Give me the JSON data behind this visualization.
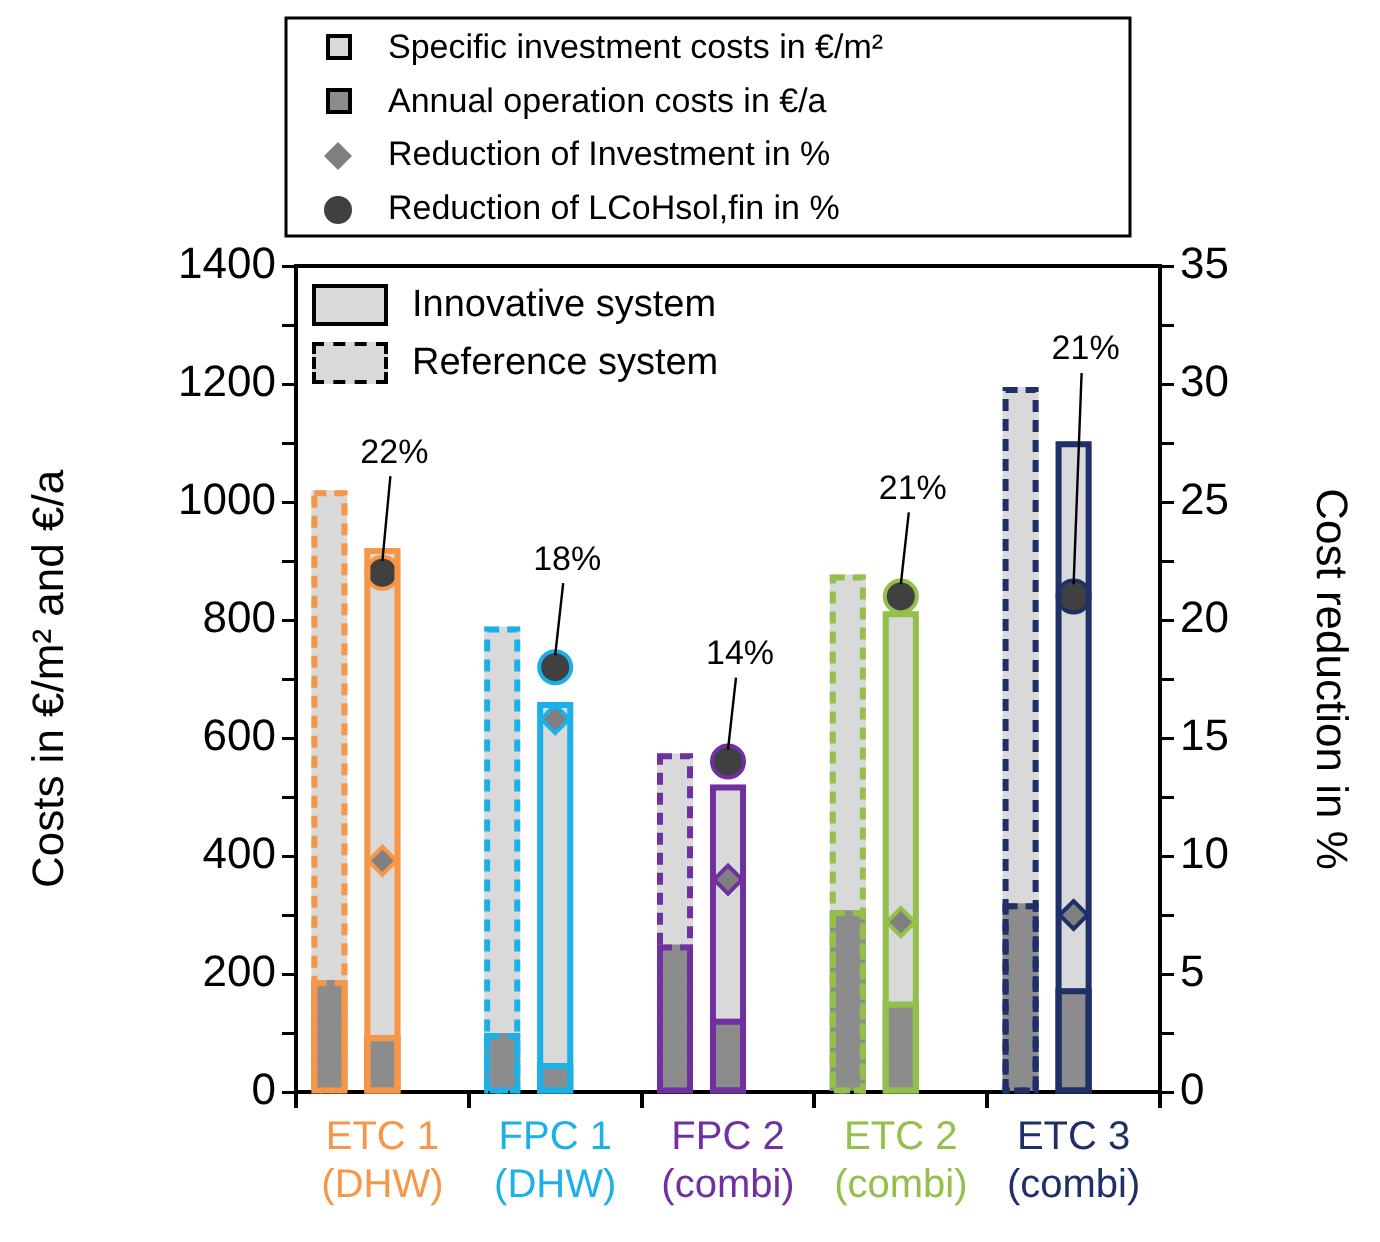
{
  "chart_data": {
    "type": "bar",
    "categories": [
      "ETC 1 (DHW)",
      "FPC 1 (DHW)",
      "FPC 2 (combi)",
      "ETC 2 (combi)",
      "ETC 3 (combi)"
    ],
    "ylabel": "Costs in €/m² and €/a",
    "y2label": "Cost reduction in %",
    "ylim": [
      0,
      1400
    ],
    "yticks": [
      0,
      {
        "value": 100,
        "label": null
      },
      200,
      {
        "value": 300,
        "label": null
      },
      400,
      {
        "value": 500,
        "label": null
      },
      600,
      {
        "value": 700,
        "label": null
      },
      800,
      {
        "value": 900,
        "label": null
      },
      1000,
      {
        "value": 1100,
        "label": null
      },
      1200,
      {
        "value": 1300,
        "label": null
      },
      1400
    ],
    "y2lim": [
      0,
      35
    ],
    "y2ticks": [
      0,
      {
        "value": 2.5,
        "label": null
      },
      5,
      {
        "value": 7.5,
        "label": null
      },
      10,
      {
        "value": 12.5,
        "label": null
      },
      15,
      {
        "value": 17.5,
        "label": null
      },
      20,
      {
        "value": 22.5,
        "label": null
      },
      25,
      {
        "value": 27.5,
        "label": null
      },
      30,
      {
        "value": 32.5,
        "label": null
      },
      35
    ],
    "grid": false,
    "legend": "top",
    "annotations": [
      "Specific investment costs in €/m²",
      "Annual operation costs in €/a",
      "Innovative system",
      "Reference system"
    ],
    "series": [
      {
        "type": "bar",
        "color": "#d9d9d9",
        "colors": [
          "#f79646",
          "#1cb0e8",
          "#7030a0",
          "#92c04a",
          "#1f3068"
        ],
        "line_style": "dashed",
        "values": [
          1020,
          789,
          574,
          877,
          1195
        ]
      },
      {
        "type": "bar",
        "color": "#8c8c8c",
        "colors": [
          "#f79646",
          "#1cb0e8",
          "#7030a0",
          "#92c04a",
          "#1f3068"
        ],
        "line_style": "dashed",
        "values": [
          190,
          100,
          250,
          308,
          320
        ]
      },
      {
        "type": "bar",
        "color": "#d9d9d9",
        "colors": [
          "#f79646",
          "#1cb0e8",
          "#7030a0",
          "#92c04a",
          "#1f3068"
        ],
        "line_style": "solid",
        "values": [
          922,
          661,
          521,
          815,
          1103
        ]
      },
      {
        "type": "bar",
        "color": "#8c8c8c",
        "colors": [
          "#f79646",
          "#1cb0e8",
          "#7030a0",
          "#92c04a",
          "#1f3068"
        ],
        "line_style": "solid",
        "values": [
          96,
          49,
          124,
          153,
          176
        ]
      },
      {
        "name": "Reduction of Investment in %",
        "type": "scatter",
        "axis": "y2",
        "marker": "diamond",
        "color": "#7f7f7f",
        "colors": [
          "#f79646",
          "#1cb0e8",
          "#7030a0",
          "#92c04a",
          "#1f3068"
        ],
        "values": [
          9.8,
          15.8,
          9.0,
          7.2,
          7.5
        ]
      },
      {
        "name": "Reduction of LCoHsol,fin in %",
        "type": "scatter",
        "axis": "y2",
        "marker": "circle",
        "color": "#404040",
        "colors": [
          "#f79646",
          "#1cb0e8",
          "#7030a0",
          "#92c04a",
          "#1f3068"
        ],
        "values": [
          22,
          18,
          14,
          21,
          21
        ],
        "value_labels": [
          "22%",
          "18%",
          "14%",
          "21%",
          "21%"
        ]
      }
    ]
  }
}
